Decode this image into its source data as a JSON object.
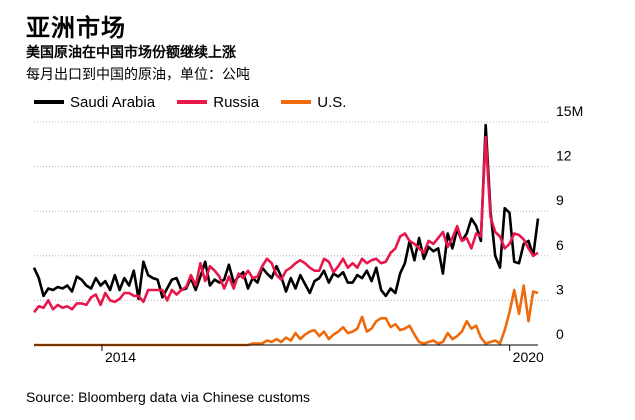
{
  "title": "亚洲市场",
  "subtitle": "美国原油在中国市场份额继续上涨",
  "note": "每月出口到中国的原油，单位：公吨",
  "source": "Source: Bloomberg data via Chinese customs",
  "chart_data": {
    "type": "line",
    "x_start": "2013-01",
    "x_end": "2020-06",
    "x_tick_labels": [
      {
        "label": "2014",
        "x": "2014-01"
      },
      {
        "label": "2020",
        "x": "2020-01"
      }
    ],
    "y_tick_labels": [
      "0",
      "3",
      "6",
      "9",
      "12",
      "15M"
    ],
    "ylim": [
      0,
      15
    ],
    "grid": "horizontal dotted",
    "series": [
      {
        "name": "Saudi Arabia",
        "color": "#000000",
        "values": [
          5.2,
          4.5,
          3.3,
          3.8,
          3.7,
          3.9,
          3.8,
          4.0,
          3.6,
          4.6,
          4.4,
          4.0,
          3.8,
          4.5,
          4.0,
          4.3,
          3.7,
          4.7,
          3.7,
          4.5,
          4.0,
          5.0,
          3.1,
          5.6,
          4.7,
          4.5,
          4.4,
          3.2,
          3.8,
          4.4,
          4.5,
          3.7,
          3.8,
          4.5,
          3.7,
          4.6,
          5.6,
          4.0,
          4.4,
          4.2,
          4.4,
          5.4,
          4.2,
          4.6,
          4.9,
          3.8,
          4.5,
          4.2,
          5.2,
          4.8,
          4.5,
          5.3,
          4.6,
          3.6,
          4.5,
          3.8,
          4.7,
          4.1,
          3.5,
          4.3,
          4.5,
          5.0,
          4.2,
          4.8,
          4.6,
          4.9,
          4.2,
          4.2,
          4.7,
          4.5,
          5.0,
          4.3,
          5.2,
          3.7,
          3.3,
          3.8,
          3.5,
          4.8,
          5.5,
          7.0,
          5.7,
          7.2,
          5.8,
          6.6,
          6.3,
          6.5,
          4.8,
          7.5,
          6.5,
          7.8,
          7.0,
          7.5,
          8.5,
          8.0,
          7.0,
          14.8,
          9.0,
          6.0,
          5.2,
          9.2,
          8.9,
          5.6,
          5.5,
          6.8,
          7.0,
          6.0,
          8.5
        ]
      },
      {
        "name": "Russia",
        "color": "#e8174b",
        "values": [
          2.2,
          2.6,
          2.5,
          3.0,
          2.4,
          2.7,
          2.5,
          2.6,
          2.4,
          2.8,
          2.8,
          2.7,
          3.2,
          3.4,
          2.7,
          3.5,
          3.0,
          2.9,
          3.1,
          3.5,
          3.5,
          3.3,
          3.3,
          2.9,
          3.7,
          3.7,
          3.7,
          3.7,
          3.0,
          3.7,
          3.4,
          3.7,
          3.9,
          4.7,
          4.0,
          5.5,
          4.3,
          5.3,
          5.0,
          4.6,
          3.8,
          4.6,
          3.8,
          4.8,
          4.5,
          5.0,
          4.5,
          4.6,
          5.3,
          5.8,
          5.5,
          4.7,
          4.4,
          5.0,
          5.2,
          5.5,
          5.7,
          5.5,
          5.2,
          5.0,
          5.0,
          5.8,
          5.6,
          4.9,
          5.3,
          5.8,
          5.2,
          5.5,
          5.2,
          5.8,
          5.5,
          5.7,
          5.8,
          5.5,
          5.6,
          6.2,
          6.5,
          7.3,
          7.5,
          7.0,
          6.8,
          6.5,
          6.2,
          7.0,
          6.8,
          7.2,
          7.6,
          6.6,
          7.2,
          8.0,
          7.0,
          7.2,
          6.5,
          7.5,
          7.3,
          14.0,
          8.6,
          7.6,
          7.3,
          6.5,
          6.8,
          7.5,
          7.4,
          7.1,
          6.5,
          6.0,
          6.2
        ]
      },
      {
        "name": "U.S.",
        "color": "#ee6a0c",
        "values": [
          0,
          0,
          0,
          0,
          0,
          0,
          0,
          0,
          0,
          0,
          0,
          0,
          0,
          0,
          0,
          0,
          0,
          0,
          0,
          0,
          0,
          0,
          0,
          0,
          0,
          0,
          0,
          0,
          0,
          0,
          0,
          0,
          0,
          0,
          0,
          0,
          0,
          0,
          0,
          0,
          0,
          0,
          0,
          0,
          0,
          0,
          0.1,
          0.1,
          0.1,
          0.3,
          0.2,
          0.4,
          0.2,
          0.5,
          0.3,
          0.8,
          0.4,
          0.7,
          0.9,
          1.0,
          0.6,
          0.9,
          0.4,
          0.7,
          0.9,
          1.2,
          0.8,
          0.9,
          1.1,
          1.9,
          0.9,
          1.1,
          1.6,
          1.8,
          1.8,
          1.2,
          1.4,
          1.0,
          1.1,
          1.3,
          0.7,
          0.2,
          0.1,
          0.2,
          0.3,
          0.1,
          0.2,
          0.8,
          0.4,
          0.6,
          0.9,
          1.6,
          1.1,
          1.3,
          0.5,
          0.1,
          0.2,
          0.3,
          0.1,
          1.0,
          2.2,
          3.7,
          2.1,
          4.0,
          1.6,
          3.6,
          3.5
        ]
      }
    ]
  }
}
